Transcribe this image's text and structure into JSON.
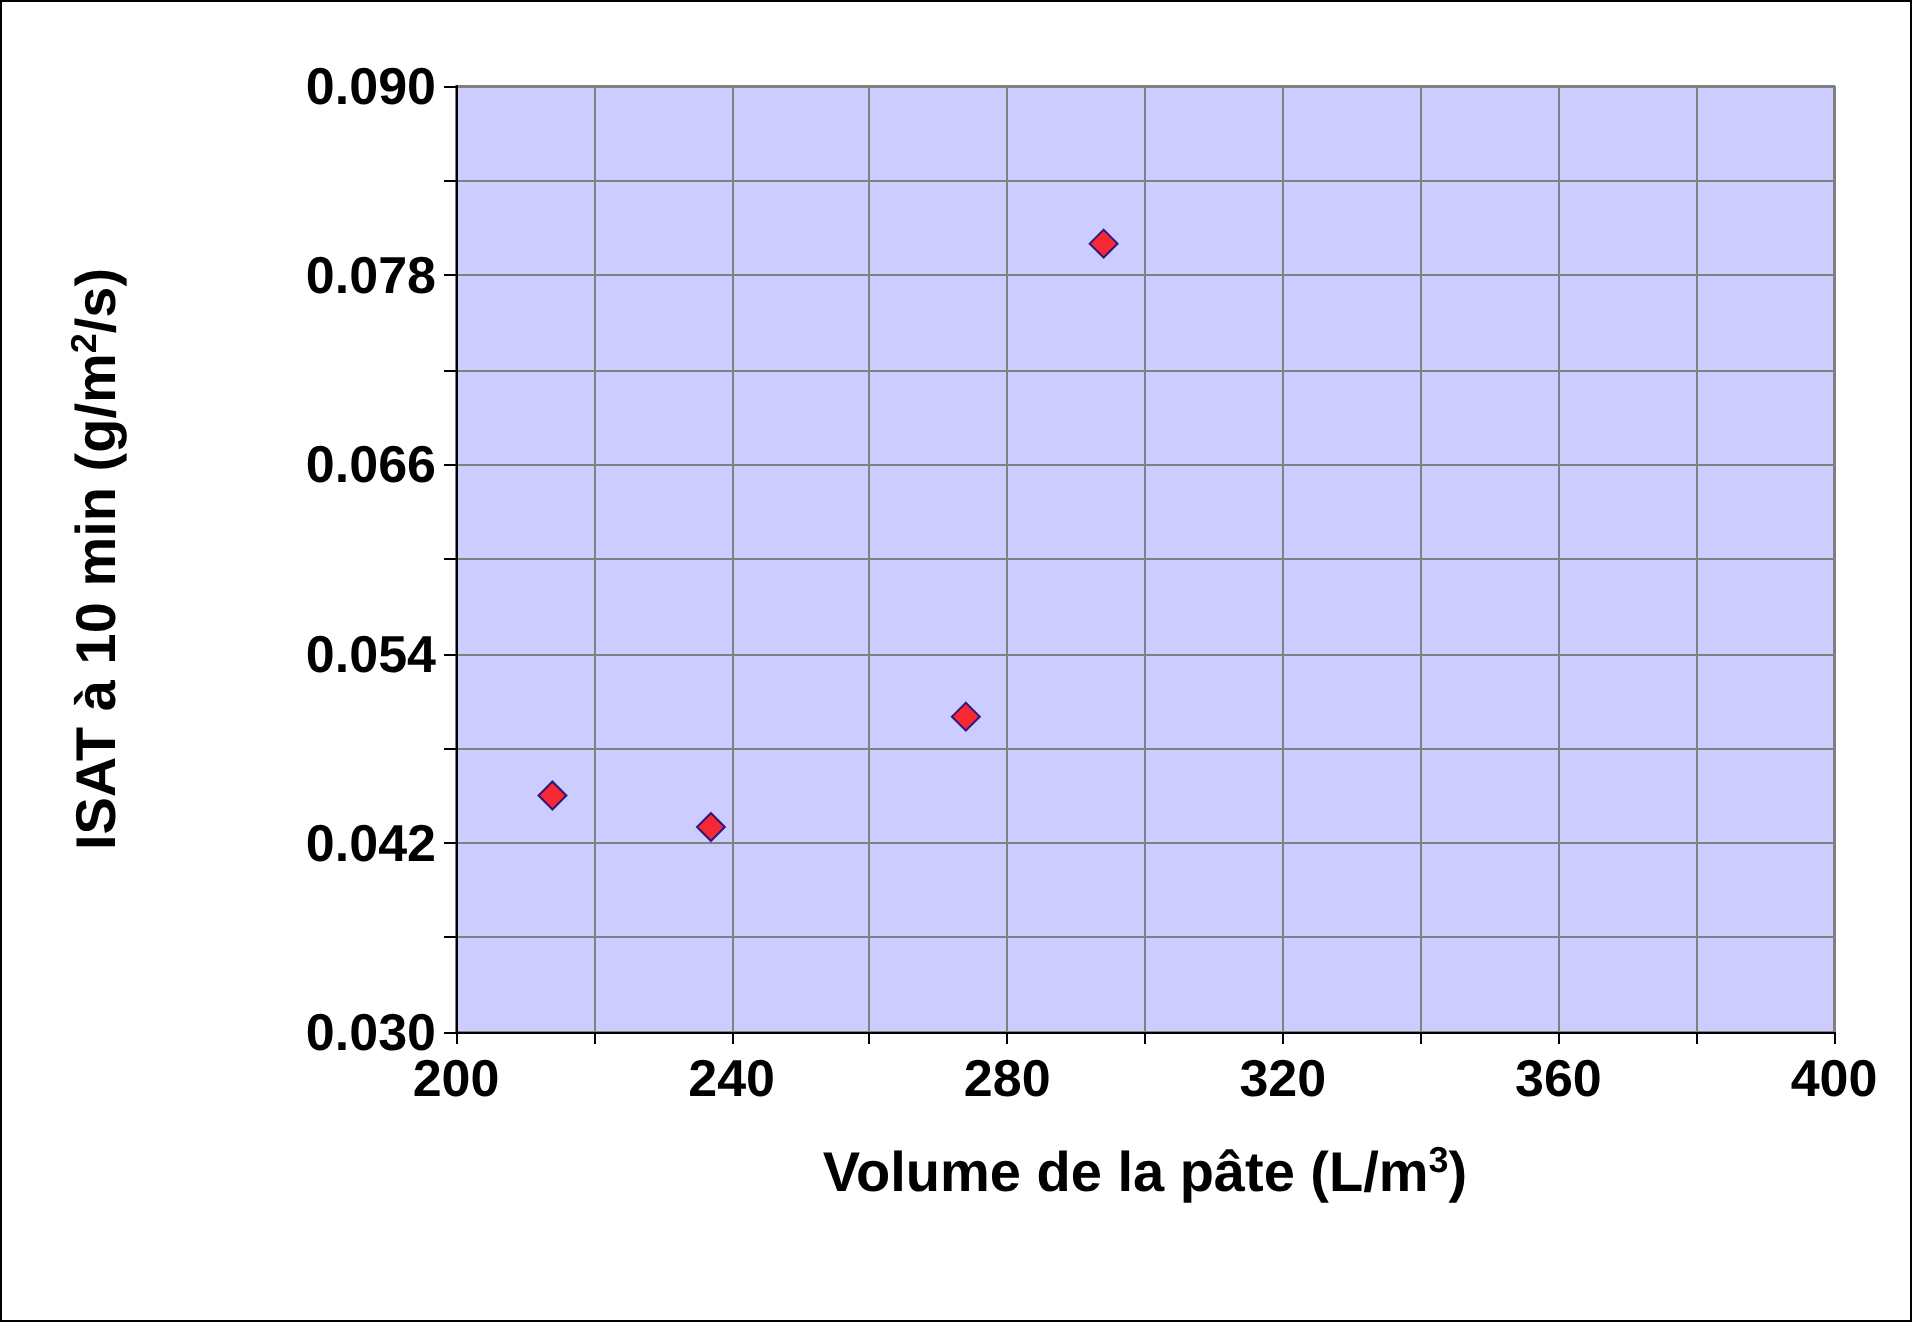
{
  "chart_data": {
    "type": "scatter",
    "xlabel": "Volume de la pâte (L/m$^{3}$)",
    "ylabel": "ISAT à 10 min (g/m$^{2}$/s)",
    "x": [
      214,
      237,
      274,
      294
    ],
    "series": [
      {
        "color": "#ff0000",
        "values": [
          0.045,
          0.043,
          0.05,
          0.08
        ]
      }
    ],
    "marker": "diamond",
    "xlim": [
      200,
      400
    ],
    "xticks": [
      200,
      {
        "value": 220,
        "label": null
      },
      240,
      {
        "value": 260,
        "label": null
      },
      280,
      {
        "value": 300,
        "label": null
      },
      320,
      {
        "value": 340,
        "label": null
      },
      360,
      {
        "value": 380,
        "label": null
      },
      400
    ],
    "ylim": [
      0.03,
      0.09
    ],
    "yticks": [
      {
        "value": 0.03,
        "label": "0.030"
      },
      {
        "value": 0.036,
        "label": null
      },
      {
        "value": 0.042,
        "label": "0.042"
      },
      {
        "value": 0.048,
        "label": null
      },
      {
        "value": 0.054,
        "label": "0.054"
      },
      {
        "value": 0.06,
        "label": null
      },
      {
        "value": 0.066,
        "label": "0.066"
      },
      {
        "value": 0.072,
        "label": null
      },
      {
        "value": 0.078,
        "label": "0.078"
      },
      {
        "value": 0.084,
        "label": null
      },
      {
        "value": 0.09,
        "label": "0.090"
      }
    ],
    "grid": true
  }
}
